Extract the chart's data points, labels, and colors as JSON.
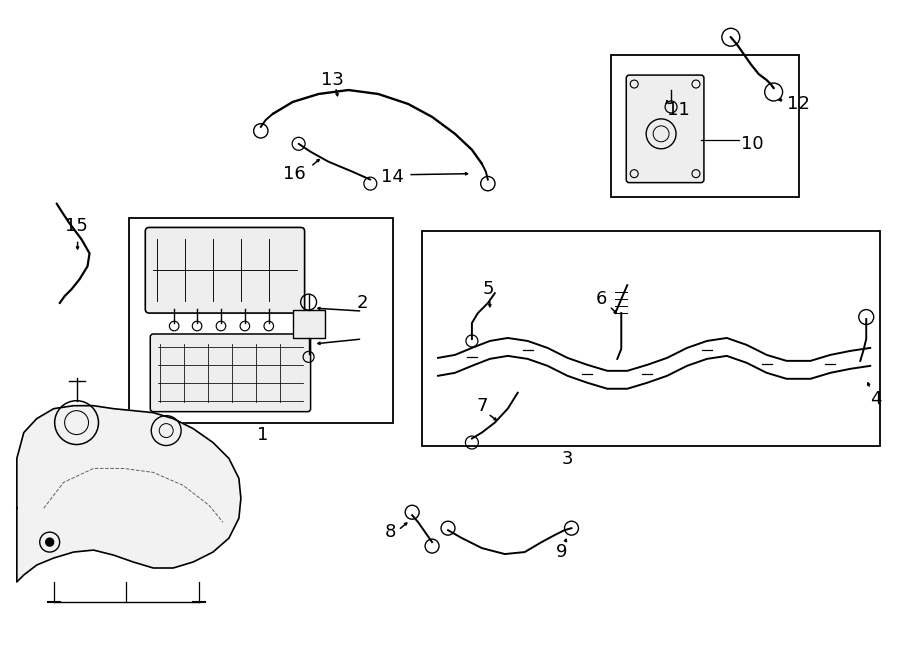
{
  "bg_color": "#ffffff",
  "line_color": "#000000",
  "label_fontsize": 13,
  "lw": 1.4,
  "fig_w": 9.0,
  "fig_h": 6.61,
  "dpi": 100
}
